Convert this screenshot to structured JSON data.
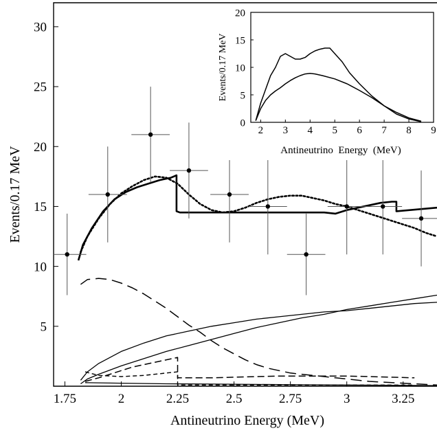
{
  "chart_data": [
    {
      "type": "line",
      "title": "",
      "xlabel": "Antineutrino Energy (MeV)",
      "ylabel": "Events/0.17 MeV",
      "xlim": [
        1.7,
        3.4
      ],
      "ylim": [
        0,
        32
      ],
      "x_ticks": [
        1.75,
        2,
        2.25,
        2.5,
        2.75,
        3,
        3.25
      ],
      "x_tick_labels": [
        "1.75",
        "2",
        "2.25",
        "2.5",
        "2.75",
        "3",
        "3.25"
      ],
      "y_ticks": [
        5,
        10,
        15,
        20,
        25,
        30
      ],
      "y_tick_labels": [
        "5",
        "10",
        "15",
        "20",
        "25",
        "30"
      ],
      "grid": false,
      "data_points": {
        "x": [
          1.76,
          1.94,
          2.13,
          2.3,
          2.48,
          2.65,
          2.82,
          3.0,
          3.16,
          3.33
        ],
        "y": [
          11,
          16,
          21,
          18,
          16,
          15,
          11,
          15,
          15,
          14
        ],
        "xerr": [
          0.085,
          0.085,
          0.085,
          0.085,
          0.085,
          0.085,
          0.085,
          0.085,
          0.085,
          0.085
        ],
        "yerr": [
          3.4,
          4,
          4,
          4,
          4,
          4,
          3.4,
          4,
          4,
          4
        ]
      },
      "series": [
        {
          "style": "solid-thick",
          "x": [
            1.81,
            1.83,
            1.87,
            1.92,
            1.97,
            2.02,
            2.07,
            2.12,
            2.17,
            2.22,
            2.245,
            2.245,
            2.26,
            2.3,
            2.4,
            2.5,
            2.6,
            2.7,
            2.8,
            2.9,
            2.95,
            3.0,
            3.05,
            3.1,
            3.15,
            3.2,
            3.22,
            3.22,
            3.28,
            3.34,
            3.4
          ],
          "y": [
            10.5,
            11.8,
            13.2,
            14.6,
            15.6,
            16.2,
            16.6,
            16.9,
            17.2,
            17.4,
            17.6,
            14.6,
            14.5,
            14.5,
            14.5,
            14.5,
            14.5,
            14.5,
            14.5,
            14.5,
            14.4,
            14.7,
            14.9,
            15.1,
            15.3,
            15.4,
            15.4,
            14.6,
            14.7,
            14.8,
            14.9
          ]
        },
        {
          "style": "dotted",
          "x": [
            1.82,
            1.85,
            1.9,
            1.95,
            2.0,
            2.05,
            2.1,
            2.15,
            2.2,
            2.25,
            2.3,
            2.35,
            2.4,
            2.45,
            2.5,
            2.55,
            2.6,
            2.65,
            2.7,
            2.75,
            2.8,
            2.85,
            2.9,
            2.95,
            3.0,
            3.05,
            3.1,
            3.15,
            3.2,
            3.25,
            3.3,
            3.35,
            3.4
          ],
          "y": [
            11.2,
            12.5,
            14.0,
            15.2,
            16.1,
            16.7,
            17.2,
            17.5,
            17.4,
            16.9,
            16.0,
            15.2,
            14.7,
            14.5,
            14.6,
            14.9,
            15.3,
            15.6,
            15.8,
            15.9,
            15.9,
            15.7,
            15.5,
            15.2,
            15.0,
            14.7,
            14.4,
            14.1,
            13.8,
            13.5,
            13.2,
            12.8,
            12.5
          ]
        },
        {
          "style": "dash-long",
          "x": [
            1.82,
            1.85,
            1.9,
            1.95,
            2.0,
            2.05,
            2.1,
            2.15,
            2.2,
            2.25,
            2.3,
            2.35,
            2.4,
            2.45,
            2.5,
            2.55,
            2.6,
            2.65,
            2.7,
            2.75,
            2.8,
            2.85,
            2.9,
            2.95,
            3.0,
            3.05,
            3.1,
            3.15,
            3.2,
            3.25,
            3.3,
            3.35,
            3.4
          ],
          "y": [
            8.5,
            8.9,
            9.0,
            8.9,
            8.6,
            8.2,
            7.7,
            7.1,
            6.5,
            5.8,
            5.1,
            4.5,
            3.8,
            3.2,
            2.7,
            2.2,
            1.8,
            1.5,
            1.3,
            1.1,
            1.0,
            0.9,
            0.8,
            0.7,
            0.6,
            0.5,
            0.4,
            0.35,
            0.3,
            0.25,
            0.2,
            0.15,
            0.1
          ]
        },
        {
          "style": "solid-thin",
          "x": [
            1.82,
            1.85,
            1.9,
            2.0,
            2.1,
            2.2,
            2.3,
            2.4,
            2.5,
            2.6,
            2.7,
            2.8,
            2.9,
            3.0,
            3.1,
            3.2,
            3.3,
            3.4
          ],
          "y": [
            0.5,
            1.2,
            1.9,
            2.9,
            3.6,
            4.2,
            4.6,
            5.0,
            5.3,
            5.6,
            5.8,
            6.0,
            6.2,
            6.3,
            6.5,
            6.7,
            6.9,
            7.0
          ]
        },
        {
          "style": "solid-thin",
          "x": [
            1.82,
            1.85,
            1.9,
            2.0,
            2.1,
            2.2,
            2.3,
            2.4,
            2.5,
            2.6,
            2.7,
            2.8,
            2.9,
            3.0,
            3.1,
            3.2,
            3.3,
            3.4
          ],
          "y": [
            0.2,
            0.6,
            1.0,
            1.7,
            2.3,
            2.9,
            3.4,
            3.9,
            4.4,
            4.9,
            5.3,
            5.7,
            6.0,
            6.4,
            6.7,
            7.0,
            7.3,
            7.6
          ]
        },
        {
          "style": "dash-medium",
          "x": [
            1.84,
            1.9,
            1.95,
            2.0,
            2.05,
            2.1,
            2.15,
            2.2,
            2.25,
            2.25,
            2.3,
            2.4,
            2.5,
            2.6,
            2.7,
            2.8,
            2.9,
            3.0,
            3.1,
            3.2,
            3.3
          ],
          "y": [
            0.4,
            0.7,
            1.0,
            1.3,
            1.6,
            1.8,
            2.0,
            2.2,
            2.4,
            0.7,
            0.7,
            0.7,
            0.75,
            0.8,
            0.85,
            0.85,
            0.85,
            0.85,
            0.8,
            0.75,
            0.7
          ]
        },
        {
          "style": "dash-short",
          "x": [
            1.84,
            1.9,
            2.0,
            2.1,
            2.2,
            2.25,
            2.25,
            2.3,
            2.5,
            2.7,
            2.9,
            3.1,
            3.3
          ],
          "y": [
            1.2,
            0.9,
            0.8,
            0.9,
            1.1,
            1.2,
            0.1,
            0.1,
            0.1,
            0.1,
            0.1,
            0.1,
            0.1
          ]
        },
        {
          "style": "solid-thin",
          "x": [
            1.84,
            2.0,
            2.2,
            2.4,
            2.6,
            2.8,
            3.0,
            3.2,
            3.4
          ],
          "y": [
            0.3,
            0.25,
            0.2,
            0.18,
            0.15,
            0.12,
            0.1,
            0.08,
            0.05
          ]
        }
      ]
    },
    {
      "type": "line",
      "title": "",
      "xlabel": "Antineutrino  Energy  (MeV)",
      "ylabel": "Events/0.17 MeV",
      "xlim": [
        1.6,
        9
      ],
      "ylim": [
        0,
        20
      ],
      "x_ticks": [
        2,
        3,
        4,
        5,
        6,
        7,
        8,
        9
      ],
      "x_tick_labels": [
        "2",
        "3",
        "4",
        "5",
        "6",
        "7",
        "8",
        "9"
      ],
      "y_ticks": [
        0,
        5,
        10,
        15,
        20
      ],
      "y_tick_labels": [
        "0",
        "5",
        "10",
        "15",
        "20"
      ],
      "grid": false,
      "series": [
        {
          "style": "solid",
          "x": [
            1.8,
            2.0,
            2.2,
            2.4,
            2.6,
            2.8,
            3.0,
            3.2,
            3.4,
            3.6,
            3.8,
            4.0,
            4.2,
            4.4,
            4.6,
            4.8,
            5.0,
            5.3,
            5.6,
            6.0,
            6.5,
            7.0,
            7.5,
            8.0,
            8.5
          ],
          "y": [
            0.3,
            3.5,
            6.0,
            8.5,
            10.0,
            12.0,
            12.5,
            12.0,
            11.5,
            11.5,
            11.8,
            12.5,
            13.0,
            13.3,
            13.5,
            13.5,
            12.5,
            11.0,
            9.0,
            7.0,
            4.8,
            3.0,
            1.5,
            0.6,
            0.1
          ]
        },
        {
          "style": "solid",
          "x": [
            1.8,
            2.0,
            2.2,
            2.4,
            2.6,
            2.8,
            3.0,
            3.2,
            3.4,
            3.6,
            3.8,
            4.0,
            4.2,
            4.5,
            5.0,
            5.5,
            6.0,
            6.5,
            7.0,
            7.5,
            8.0,
            8.5
          ],
          "y": [
            0.3,
            2.5,
            4.0,
            5.0,
            5.7,
            6.3,
            7.0,
            7.6,
            8.1,
            8.5,
            8.8,
            8.9,
            8.8,
            8.5,
            7.9,
            7.0,
            5.8,
            4.5,
            3.0,
            1.8,
            0.8,
            0.2
          ]
        }
      ]
    }
  ]
}
